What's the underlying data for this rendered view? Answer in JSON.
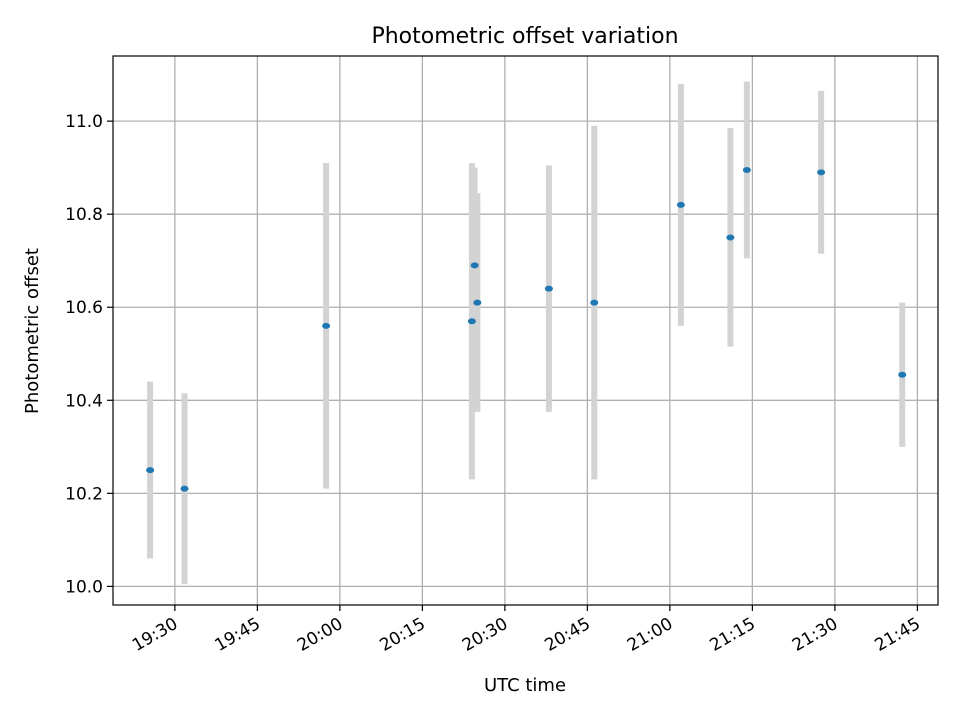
{
  "chart_data": {
    "type": "scatter",
    "title": "Photometric offset variation",
    "xlabel": "UTC time",
    "ylabel": "Photometric offset",
    "grid": true,
    "legend": "none",
    "x_ticks": [
      "19:30",
      "19:45",
      "20:00",
      "20:15",
      "20:30",
      "20:45",
      "21:00",
      "21:15",
      "21:30",
      "21:45"
    ],
    "y_ticks": [
      "10.0",
      "10.2",
      "10.4",
      "10.6",
      "10.8",
      "11.0"
    ],
    "xlim": [
      "19:18:45",
      "21:48:45"
    ],
    "ylim": [
      9.96,
      11.14
    ],
    "colors": {
      "point": "#1f77b4",
      "errorbar": "#d3d3d3",
      "grid": "#b0b0b0"
    },
    "series": [
      {
        "points": [
          {
            "x": "19:25:30",
            "y": 10.25,
            "yerr": 0.19
          },
          {
            "x": "19:31:45",
            "y": 10.21,
            "yerr": 0.205
          },
          {
            "x": "19:57:30",
            "y": 10.56,
            "yerr": 0.35
          },
          {
            "x": "20:24:00",
            "y": 10.57,
            "yerr": 0.34
          },
          {
            "x": "20:24:30",
            "y": 10.69,
            "yerr": 0.21
          },
          {
            "x": "20:25:00",
            "y": 10.61,
            "yerr": 0.235
          },
          {
            "x": "20:38:00",
            "y": 10.64,
            "yerr": 0.265
          },
          {
            "x": "20:46:15",
            "y": 10.61,
            "yerr": 0.38
          },
          {
            "x": "21:02:00",
            "y": 10.82,
            "yerr": 0.26
          },
          {
            "x": "21:11:00",
            "y": 10.75,
            "yerr": 0.235
          },
          {
            "x": "21:14:00",
            "y": 10.895,
            "yerr": 0.19
          },
          {
            "x": "21:27:30",
            "y": 10.89,
            "yerr": 0.175
          },
          {
            "x": "21:42:15",
            "y": 10.455,
            "yerr": 0.155
          }
        ]
      }
    ]
  }
}
